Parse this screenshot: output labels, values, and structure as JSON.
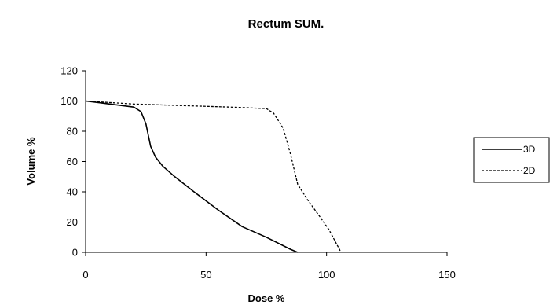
{
  "chart_data": {
    "type": "line",
    "title": "Rectum SUM.",
    "xlabel": "Dose %",
    "ylabel": "Volume %",
    "xlim": [
      0,
      150
    ],
    "ylim": [
      0,
      120
    ],
    "xticks": [
      0,
      50,
      100,
      150
    ],
    "yticks": [
      0,
      20,
      40,
      60,
      80,
      100,
      120
    ],
    "xtick_labels": [
      "0",
      "50",
      "100",
      "150"
    ],
    "ytick_labels": [
      "0",
      "20",
      "40",
      "60",
      "80",
      "100",
      "120"
    ],
    "grid": false,
    "legend": "right",
    "series": [
      {
        "name": "3D",
        "style": "solid",
        "color": "#000000",
        "x": [
          0,
          10,
          20,
          23,
          25,
          27,
          29,
          32,
          37,
          45,
          55,
          65,
          75,
          85,
          88
        ],
        "y": [
          100,
          98,
          96,
          93,
          85,
          70,
          63,
          57,
          50,
          40,
          28,
          17,
          10,
          2,
          0
        ]
      },
      {
        "name": "2D",
        "style": "dashed",
        "color": "#000000",
        "x": [
          0,
          20,
          40,
          60,
          75,
          78,
          82,
          85,
          88,
          92,
          97,
          101,
          104,
          106
        ],
        "y": [
          100,
          98,
          97,
          96,
          95,
          92,
          82,
          65,
          45,
          35,
          24,
          15,
          6,
          0
        ]
      }
    ]
  }
}
